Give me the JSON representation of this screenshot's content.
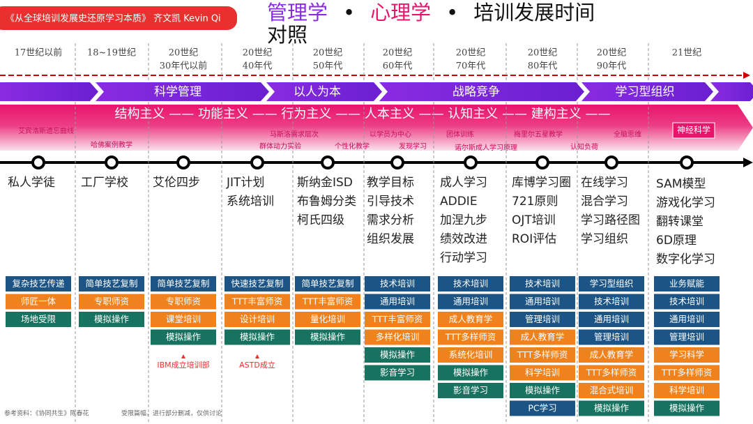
{
  "header": {
    "tag": "《从全球培训发展史还原学习本质》  齐文凯 Kevin Qi",
    "title": [
      "管理学",
      "•",
      "心理学",
      "•",
      "培训发展时间对照"
    ]
  },
  "management_band": [
    "科学管理",
    "以人为本",
    "战略竞争",
    "学习型组织"
  ],
  "psychology_band": "结构主义 —— 功能主义 —— 行为主义 —— 人本主义 —— 认知主义 —— 建构主义 ——",
  "psychology_labels": [
    "艾宾浩斯遗忘曲线",
    "哈佛案例教学",
    "马斯洛需求层次",
    "群体动力实验",
    "个性化教学",
    "以学员为中心",
    "发现学习",
    "团体训练",
    "诺尔斯成人学习原理",
    "梅里尔五星教学",
    "认知负荷",
    "全脑思维",
    "神经科学"
  ],
  "colors": {
    "blue": "#1c5585",
    "orange": "#f0821e",
    "teal": "#17735f"
  },
  "columns": [
    {
      "period": [
        "17世纪以前"
      ],
      "milestones": [
        "私人学徒"
      ],
      "boxes": [
        {
          "text": "复杂技艺传递",
          "color": "blue"
        },
        {
          "text": "师匠一体",
          "color": "orange"
        },
        {
          "text": "场地受限",
          "color": "teal"
        }
      ]
    },
    {
      "period": [
        "18~19世纪"
      ],
      "milestones": [
        "工厂学校"
      ],
      "boxes": [
        {
          "text": "简单技艺复制",
          "color": "blue"
        },
        {
          "text": "专职师资",
          "color": "orange"
        },
        {
          "text": "模拟操作",
          "color": "teal"
        }
      ]
    },
    {
      "period": [
        "20世纪",
        "30年代以前"
      ],
      "milestones": [
        "艾伦四步"
      ],
      "boxes": [
        {
          "text": "简单技艺复制",
          "color": "blue"
        },
        {
          "text": "专职师资",
          "color": "orange"
        },
        {
          "text": "课堂培训",
          "color": "orange"
        },
        {
          "text": "模拟操作",
          "color": "teal"
        }
      ],
      "note": "IBM成立培训部"
    },
    {
      "period": [
        "20世纪",
        "40年代"
      ],
      "milestones": [
        "JIT计划",
        "系统培训"
      ],
      "boxes": [
        {
          "text": "快速技艺复制",
          "color": "blue"
        },
        {
          "text": "TTT丰富师资",
          "color": "orange"
        },
        {
          "text": "设计培训",
          "color": "orange"
        },
        {
          "text": "模拟操作",
          "color": "teal"
        }
      ],
      "note": "ASTD成立"
    },
    {
      "period": [
        "20世纪",
        "50年代"
      ],
      "milestones": [
        "斯纳金ISD",
        "布鲁姆分类",
        "柯氏四级"
      ],
      "boxes": [
        {
          "text": "简单技艺复制",
          "color": "blue"
        },
        {
          "text": "TTT丰富师资",
          "color": "orange"
        },
        {
          "text": "量化培训",
          "color": "orange"
        },
        {
          "text": "模拟操作",
          "color": "teal"
        }
      ]
    },
    {
      "period": [
        "20世纪",
        "60年代"
      ],
      "milestones": [
        "教学目标",
        "引导技术",
        "需求分析",
        "组织发展"
      ],
      "boxes": [
        {
          "text": "技术培训",
          "color": "blue"
        },
        {
          "text": "通用培训",
          "color": "blue"
        },
        {
          "text": "TTT丰富师资",
          "color": "orange"
        },
        {
          "text": "多样化培训",
          "color": "orange"
        },
        {
          "text": "模拟操作",
          "color": "teal"
        },
        {
          "text": "影音学习",
          "color": "teal"
        }
      ]
    },
    {
      "period": [
        "20世纪",
        "70年代"
      ],
      "milestones": [
        "成人学习",
        "ADDIE",
        "加涅九步",
        "绩效改进",
        "行动学习"
      ],
      "boxes": [
        {
          "text": "技术培训",
          "color": "blue"
        },
        {
          "text": "通用培训",
          "color": "blue"
        },
        {
          "text": "成人教育学",
          "color": "orange"
        },
        {
          "text": "TTT多样师资",
          "color": "orange"
        },
        {
          "text": "系统化培训",
          "color": "orange"
        },
        {
          "text": "模拟操作",
          "color": "teal"
        },
        {
          "text": "影音学习",
          "color": "teal"
        }
      ]
    },
    {
      "period": [
        "20世纪",
        "80年代"
      ],
      "milestones": [
        "库博学习圈",
        "721原则",
        "OJT培训",
        "ROI评估"
      ],
      "boxes": [
        {
          "text": "技术培训",
          "color": "blue"
        },
        {
          "text": "通用培训",
          "color": "blue"
        },
        {
          "text": "管理培训",
          "color": "blue"
        },
        {
          "text": "成人教育学",
          "color": "orange"
        },
        {
          "text": "TTT多样师资",
          "color": "orange"
        },
        {
          "text": "科学培训",
          "color": "orange"
        },
        {
          "text": "模拟操作",
          "color": "teal"
        },
        {
          "text": "PC学习",
          "color": "blue"
        }
      ]
    },
    {
      "period": [
        "20世纪",
        "90年代"
      ],
      "milestones": [
        "在线学习",
        "混合学习",
        "学习路径图",
        "学习组织"
      ],
      "boxes": [
        {
          "text": "学习型组织",
          "color": "blue"
        },
        {
          "text": "技术培训",
          "color": "blue"
        },
        {
          "text": "通用培训",
          "color": "blue"
        },
        {
          "text": "管理培训",
          "color": "blue"
        },
        {
          "text": "成人教育学",
          "color": "orange"
        },
        {
          "text": "TTT多样师资",
          "color": "orange"
        },
        {
          "text": "混合式培训",
          "color": "orange"
        },
        {
          "text": "模拟操作",
          "color": "teal"
        }
      ]
    },
    {
      "period": [
        "21世纪"
      ],
      "milestones": [
        "SAM模型",
        "游戏化学习",
        "翻转课堂",
        "6D原理",
        "数字化学习"
      ],
      "boxes": [
        {
          "text": "业务赋能",
          "color": "blue"
        },
        {
          "text": "技术培训",
          "color": "blue"
        },
        {
          "text": "通用培训",
          "color": "blue"
        },
        {
          "text": "管理培训",
          "color": "blue"
        },
        {
          "text": "学习科学",
          "color": "orange"
        },
        {
          "text": "TTT多样师资",
          "color": "orange"
        },
        {
          "text": "科学培训",
          "color": "orange"
        },
        {
          "text": "模拟操作",
          "color": "teal"
        }
      ]
    }
  ],
  "footer": {
    "source": "参考资料：《协同共生》陈春花",
    "disclaimer": "受限篇幅，进行部分删减，仅供讨论"
  }
}
